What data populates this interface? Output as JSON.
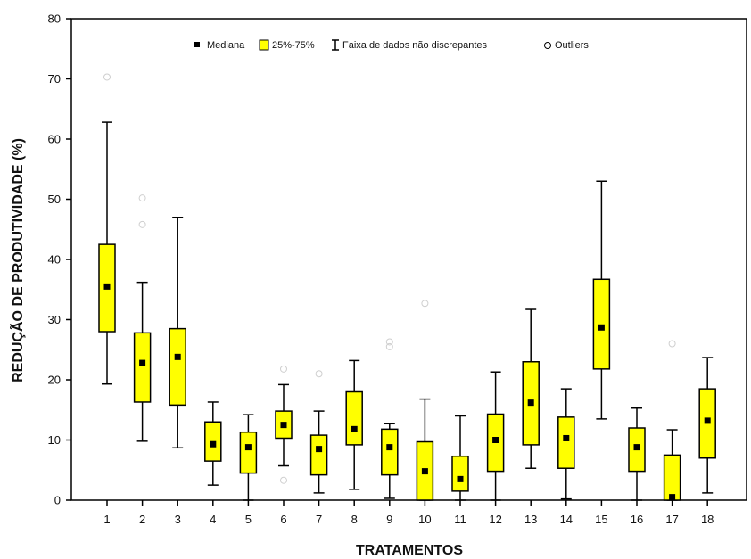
{
  "chart_data": {
    "type": "boxplot",
    "xlabel": "TRATAMENTOS",
    "ylabel": "REDUÇÃO DE PRODUTIVIDADE (%)",
    "ylim": [
      0,
      80
    ],
    "yticks": [
      "0",
      "10",
      "20",
      "30",
      "40",
      "50",
      "60",
      "70",
      "80"
    ],
    "categories": [
      "1",
      "2",
      "3",
      "4",
      "5",
      "6",
      "7",
      "8",
      "9",
      "10",
      "11",
      "12",
      "13",
      "14",
      "15",
      "16",
      "17",
      "18"
    ],
    "legend": {
      "placement": "top-center",
      "median": "Mediana",
      "box": "25%-75%",
      "whisker": "Faixa de dados não discrepantes",
      "outlier": "Outliers"
    },
    "box_color": "#ffff00",
    "series": [
      {
        "category": "1",
        "median": 35.5,
        "q1": 28.0,
        "q3": 42.5,
        "min": 19.3,
        "max": 62.8,
        "outliers": [
          70.3
        ]
      },
      {
        "category": "2",
        "median": 22.8,
        "q1": 16.3,
        "q3": 27.8,
        "min": 9.8,
        "max": 36.2,
        "outliers": [
          45.8,
          50.2
        ]
      },
      {
        "category": "3",
        "median": 23.8,
        "q1": 15.8,
        "q3": 28.5,
        "min": 8.7,
        "max": 47.0,
        "outliers": []
      },
      {
        "category": "4",
        "median": 9.3,
        "q1": 6.5,
        "q3": 13.0,
        "min": 2.5,
        "max": 16.3,
        "outliers": []
      },
      {
        "category": "5",
        "median": 8.8,
        "q1": 4.5,
        "q3": 11.3,
        "min": 0.0,
        "max": 14.2,
        "outliers": []
      },
      {
        "category": "6",
        "median": 12.5,
        "q1": 10.3,
        "q3": 14.8,
        "min": 5.7,
        "max": 19.2,
        "outliers": [
          21.8,
          3.3
        ]
      },
      {
        "category": "7",
        "median": 8.5,
        "q1": 4.2,
        "q3": 10.8,
        "min": 1.2,
        "max": 14.8,
        "outliers": [
          21.0
        ]
      },
      {
        "category": "8",
        "median": 11.8,
        "q1": 9.2,
        "q3": 18.0,
        "min": 1.8,
        "max": 23.2,
        "outliers": []
      },
      {
        "category": "9",
        "median": 8.8,
        "q1": 4.2,
        "q3": 11.8,
        "min": 0.3,
        "max": 12.7,
        "outliers": [
          25.5,
          26.3
        ]
      },
      {
        "category": "10",
        "median": 4.8,
        "q1": 0.0,
        "q3": 9.7,
        "min": 0.0,
        "max": 16.8,
        "outliers": [
          32.7
        ]
      },
      {
        "category": "11",
        "median": 3.5,
        "q1": 1.5,
        "q3": 7.3,
        "min": 0.0,
        "max": 14.0,
        "outliers": []
      },
      {
        "category": "12",
        "median": 10.0,
        "q1": 4.8,
        "q3": 14.3,
        "min": 0.0,
        "max": 21.3,
        "outliers": []
      },
      {
        "category": "13",
        "median": 16.2,
        "q1": 9.2,
        "q3": 23.0,
        "min": 5.3,
        "max": 31.7,
        "outliers": []
      },
      {
        "category": "14",
        "median": 10.3,
        "q1": 5.3,
        "q3": 13.8,
        "min": 0.2,
        "max": 18.5,
        "outliers": []
      },
      {
        "category": "15",
        "median": 28.7,
        "q1": 21.8,
        "q3": 36.7,
        "min": 13.5,
        "max": 53.0,
        "outliers": []
      },
      {
        "category": "16",
        "median": 8.8,
        "q1": 4.8,
        "q3": 12.0,
        "min": 0.0,
        "max": 15.3,
        "outliers": []
      },
      {
        "category": "17",
        "median": 0.5,
        "q1": 0.0,
        "q3": 7.5,
        "min": 0.0,
        "max": 11.7,
        "outliers": [
          26.0
        ]
      },
      {
        "category": "18",
        "median": 13.2,
        "q1": 7.0,
        "q3": 18.5,
        "min": 1.2,
        "max": 23.7,
        "outliers": []
      }
    ]
  }
}
